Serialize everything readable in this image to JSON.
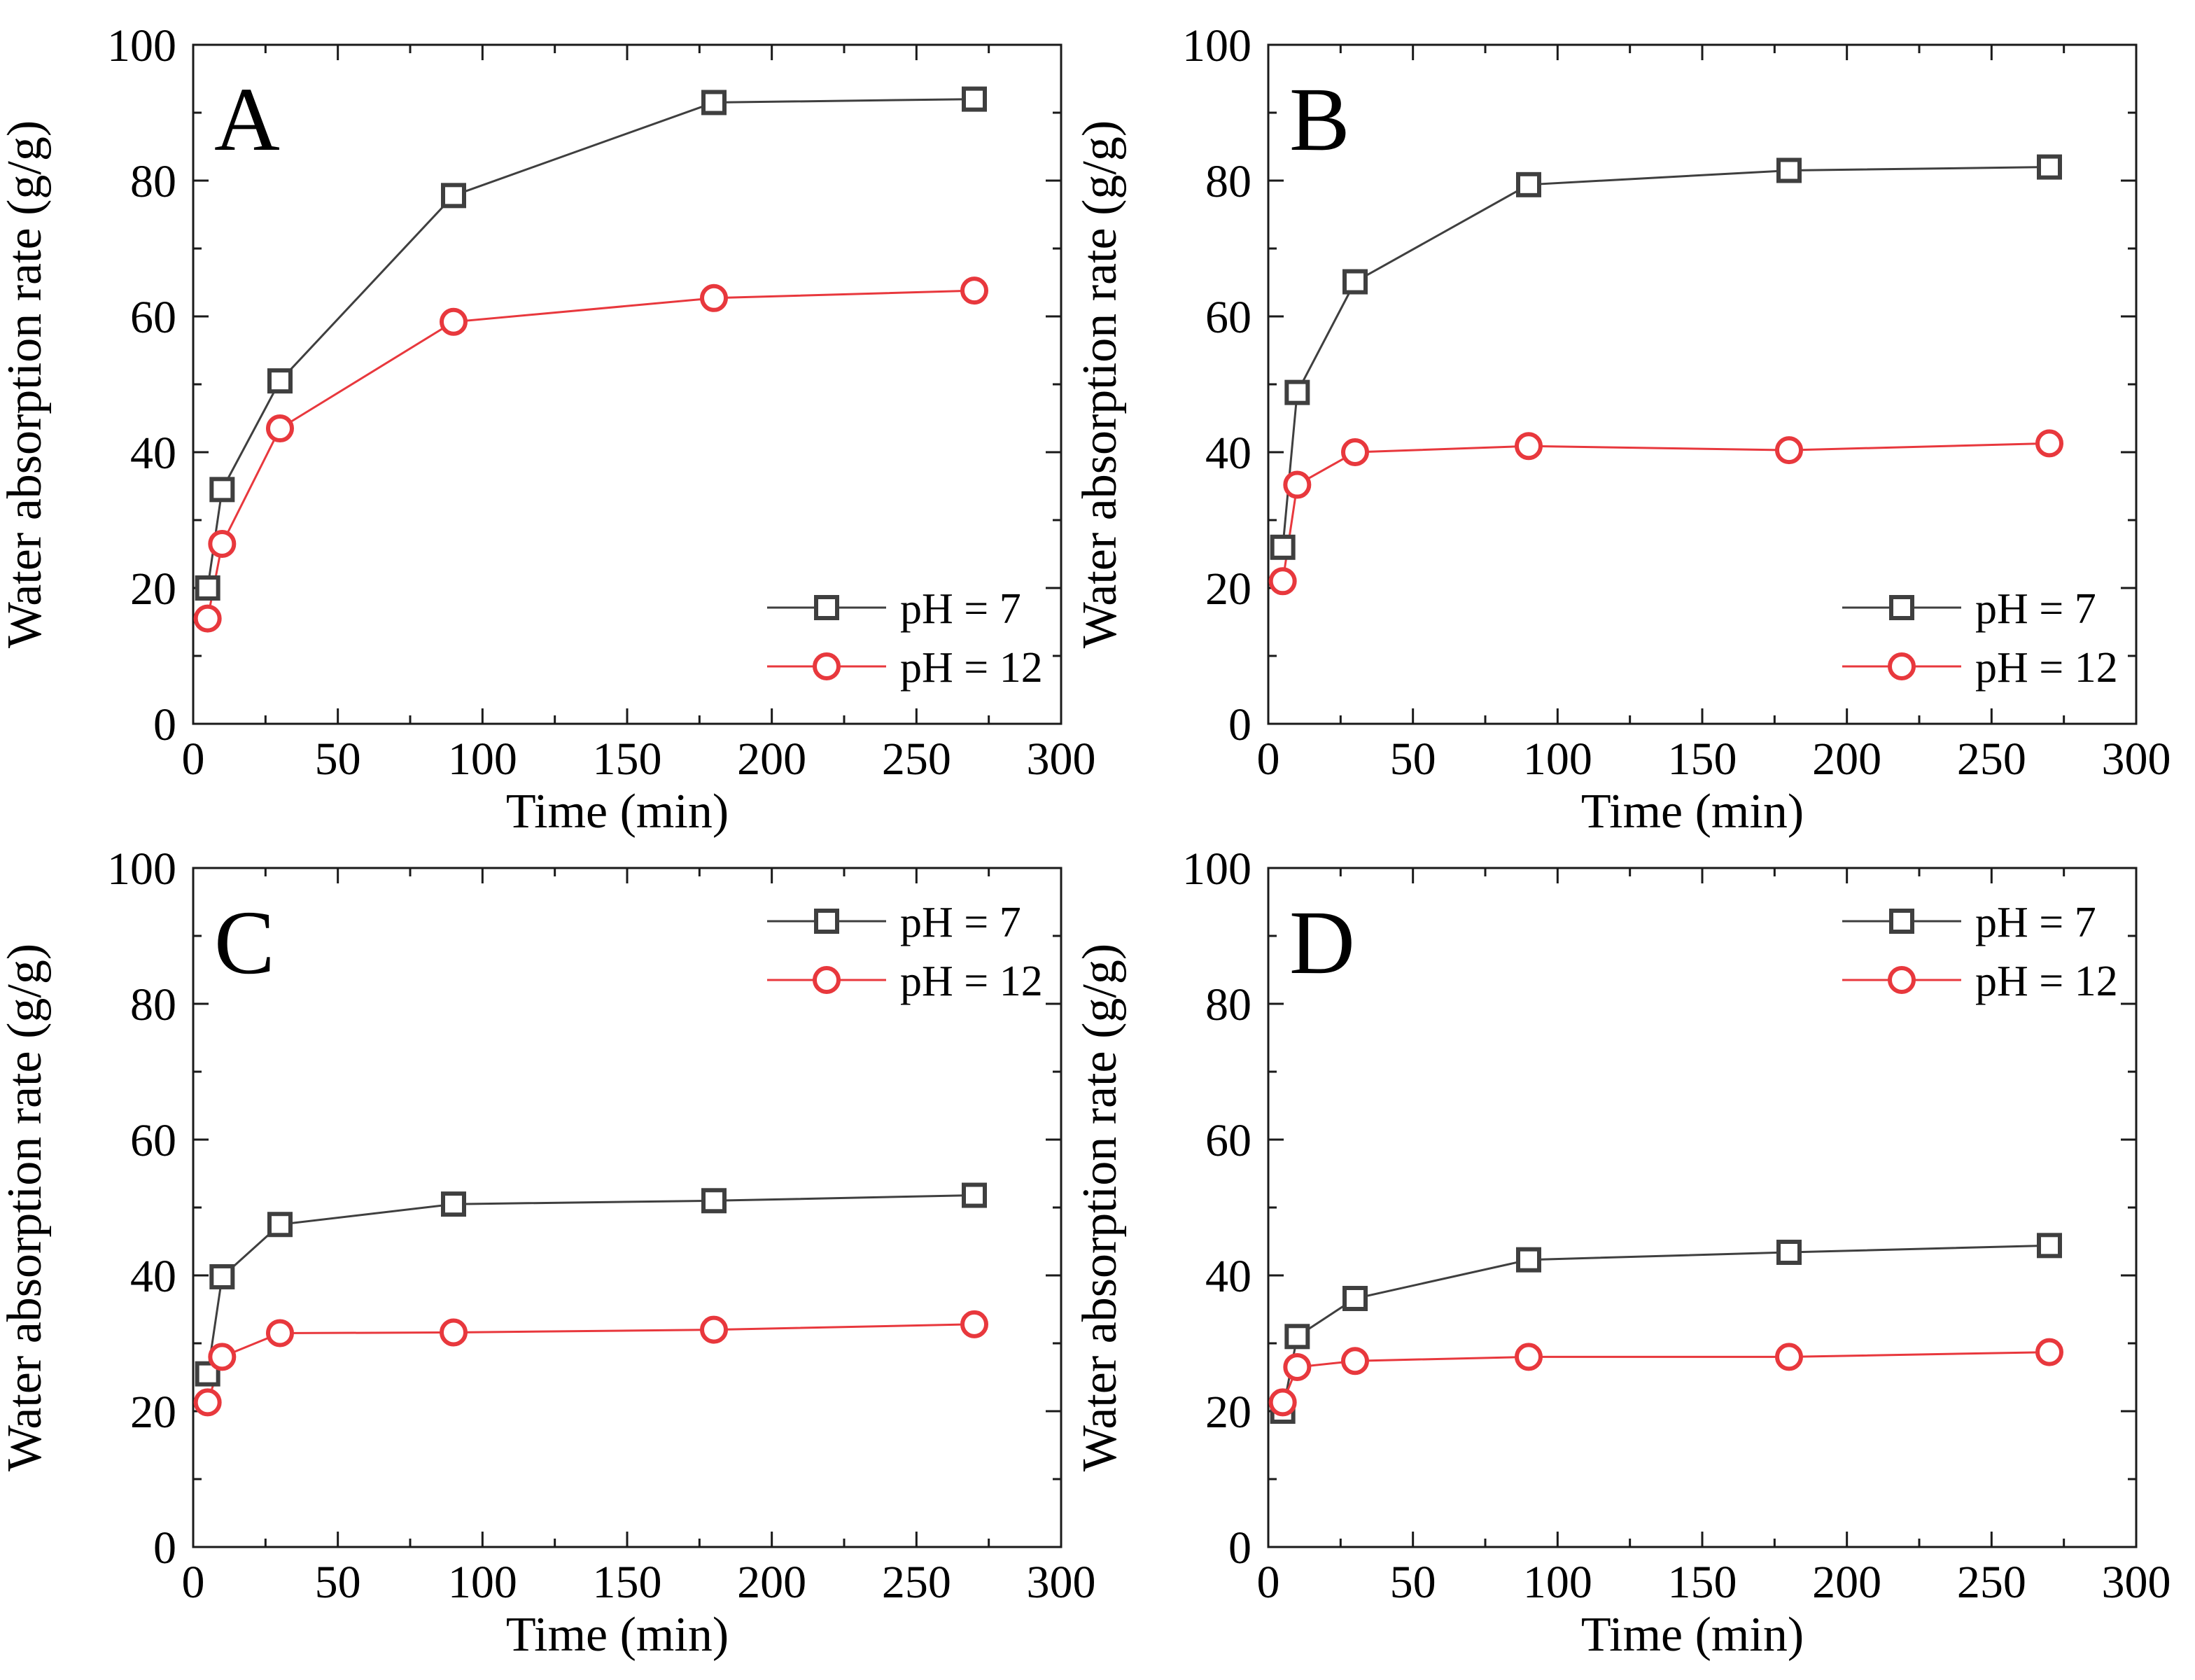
{
  "figure": {
    "colors": {
      "ph7": "#3f3f3f",
      "ph12": "#e8383d"
    },
    "legend": [
      {
        "label": "pH = 7",
        "marker": "square",
        "color": "#3f3f3f"
      },
      {
        "label": "pH = 12",
        "marker": "circle",
        "color": "#e8383d"
      }
    ]
  },
  "chart_data": [
    {
      "type": "line",
      "panel_label": "A",
      "xlabel": "Time (min)",
      "ylabel": "Water absorption rate (g/g)",
      "xlim": [
        0,
        300
      ],
      "ylim": [
        0,
        100
      ],
      "xticks": [
        0,
        50,
        100,
        150,
        200,
        250,
        300
      ],
      "yticks": [
        0,
        20,
        40,
        60,
        80,
        100
      ],
      "legend_position": "bottom-right",
      "grid": false,
      "x": [
        5,
        10,
        30,
        90,
        180,
        270
      ],
      "series": [
        {
          "name": "pH = 7",
          "marker": "square",
          "color": "#3f3f3f",
          "values": [
            20.0,
            34.5,
            50.5,
            77.8,
            91.5,
            92.0
          ]
        },
        {
          "name": "pH = 12",
          "marker": "circle",
          "color": "#e8383d",
          "values": [
            15.5,
            26.5,
            43.5,
            59.2,
            62.7,
            63.8
          ]
        }
      ]
    },
    {
      "type": "line",
      "panel_label": "B",
      "xlabel": "Time (min)",
      "ylabel": "Water absorption rate (g/g)",
      "xlim": [
        0,
        300
      ],
      "ylim": [
        0,
        100
      ],
      "xticks": [
        0,
        50,
        100,
        150,
        200,
        250,
        300
      ],
      "yticks": [
        0,
        20,
        40,
        60,
        80,
        100
      ],
      "legend_position": "bottom-right",
      "grid": false,
      "x": [
        5,
        10,
        30,
        90,
        180,
        270
      ],
      "series": [
        {
          "name": "pH = 7",
          "marker": "square",
          "color": "#3f3f3f",
          "values": [
            26.0,
            48.8,
            65.1,
            79.4,
            81.5,
            82.0
          ]
        },
        {
          "name": "pH = 12",
          "marker": "circle",
          "color": "#e8383d",
          "values": [
            21.0,
            35.2,
            40.0,
            40.9,
            40.3,
            41.3
          ]
        }
      ]
    },
    {
      "type": "line",
      "panel_label": "C",
      "xlabel": "Time (min)",
      "ylabel": "Water absorption rate (g/g)",
      "xlim": [
        0,
        300
      ],
      "ylim": [
        0,
        100
      ],
      "xticks": [
        0,
        50,
        100,
        150,
        200,
        250,
        300
      ],
      "yticks": [
        0,
        20,
        40,
        60,
        80,
        100
      ],
      "legend_position": "top-right",
      "grid": false,
      "x": [
        5,
        10,
        30,
        90,
        180,
        270
      ],
      "series": [
        {
          "name": "pH = 7",
          "marker": "square",
          "color": "#3f3f3f",
          "values": [
            25.5,
            39.8,
            47.5,
            50.5,
            51.0,
            51.8
          ]
        },
        {
          "name": "pH = 12",
          "marker": "circle",
          "color": "#e8383d",
          "values": [
            21.3,
            28.0,
            31.5,
            31.6,
            32.0,
            32.8
          ]
        }
      ]
    },
    {
      "type": "line",
      "panel_label": "D",
      "xlabel": "Time (min)",
      "ylabel": "Water absorption rate (g/g)",
      "xlim": [
        0,
        300
      ],
      "ylim": [
        0,
        100
      ],
      "xticks": [
        0,
        50,
        100,
        150,
        200,
        250,
        300
      ],
      "yticks": [
        0,
        20,
        40,
        60,
        80,
        100
      ],
      "legend_position": "top-right",
      "grid": false,
      "x": [
        5,
        10,
        30,
        90,
        180,
        270
      ],
      "series": [
        {
          "name": "pH = 7",
          "marker": "square",
          "color": "#3f3f3f",
          "values": [
            20.0,
            31.0,
            36.6,
            42.3,
            43.4,
            44.4
          ]
        },
        {
          "name": "pH = 12",
          "marker": "circle",
          "color": "#e8383d",
          "values": [
            21.3,
            26.5,
            27.4,
            28.0,
            28.0,
            28.7
          ]
        }
      ]
    }
  ]
}
